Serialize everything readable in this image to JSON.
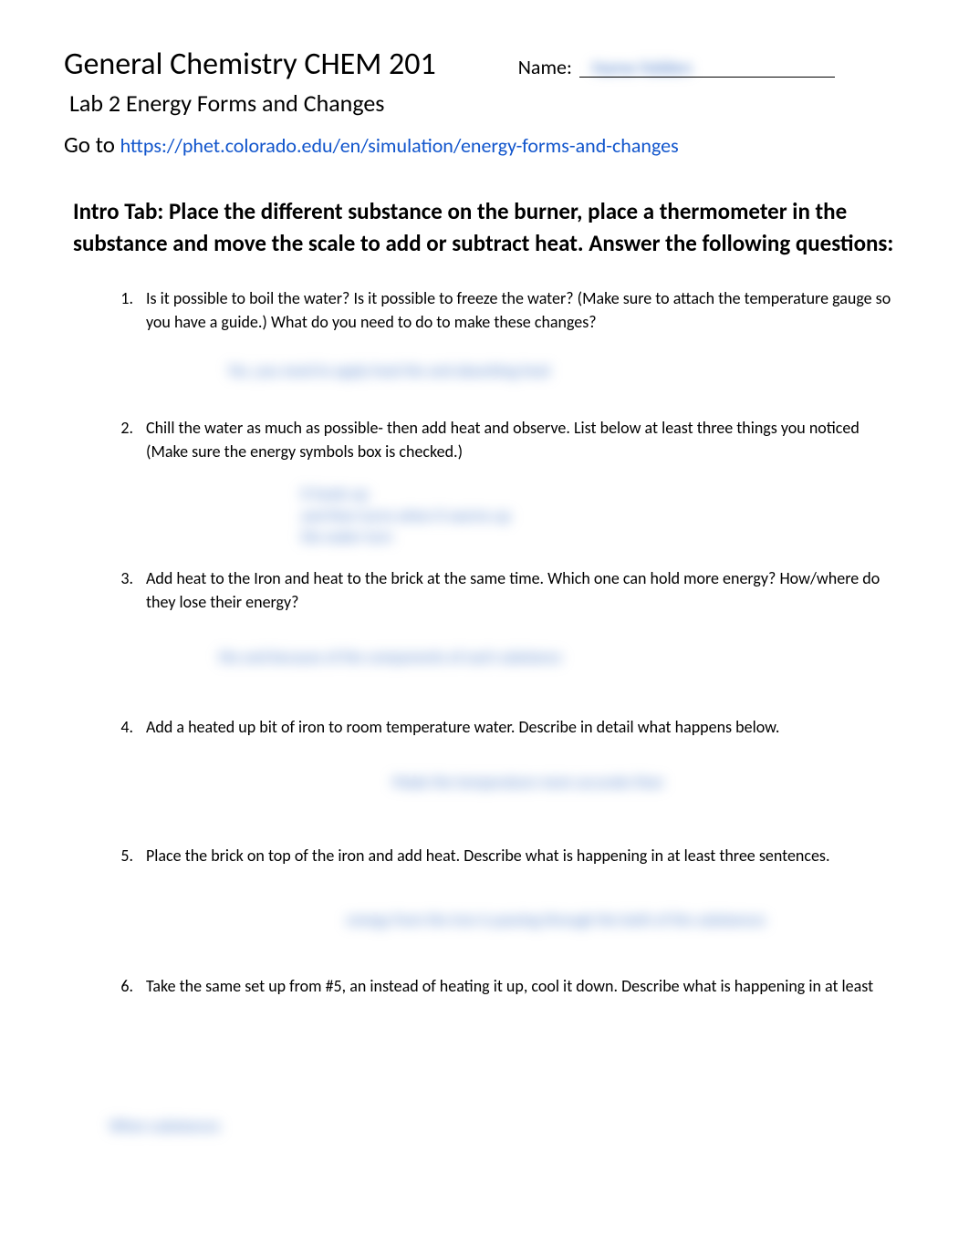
{
  "header": {
    "course_title": "General Chemistry CHEM 201",
    "name_label": "Name:",
    "name_value_blur": "Name hidden",
    "lab_title": "Lab 2 Energy Forms and Changes",
    "goto_label": "Go to ",
    "goto_link": "https://phet.colorado.edu/en/simulation/energy-forms-and-changes"
  },
  "intro_heading": "Intro Tab: Place the different substance on the burner, place a thermometer in the substance and move the scale to add or subtract heat. Answer the following questions:",
  "questions": [
    {
      "number": "1.",
      "text": "Is it possible to boil the water? Is it possible to freeze the water? (Make sure to attach the temperature gauge so you have a guide.) What do you need to do to make these changes?",
      "answer_blur": "Yes, you need to apply heat the and absorbing heat"
    },
    {
      "number": "2.",
      "text": "Chill the water as much as possible- then add heat and observe. List below at least three things you noticed (Make sure the energy symbols box is checked.)",
      "answer_blur_lines": [
        "It heats up",
        "and then turns when it warms up",
        "the water turn"
      ]
    },
    {
      "number": "3.",
      "text": "Add heat to the Iron and heat to the brick at the same time. Which one can hold more energy? How/where do they lose their energy?",
      "answer_blur": "the  and because of the components of each substance"
    },
    {
      "number": "4.",
      "text": "Add a heated up bit of iron to room temperature water. Describe in detail what happens below.",
      "answer_blur": "Made the temperature more accurate than"
    },
    {
      "number": "5.",
      "text": "Place the brick on top of the iron and add heat. Describe what is happening in at least three sentences.",
      "answer_blur": "energy from the iron is passing through the both of the substances"
    },
    {
      "number": "6.",
      "text": "Take the same set up from #5, an instead of heating it up, cool it down. Describe what is happening in at least"
    }
  ],
  "bottom_blur": "When substances"
}
